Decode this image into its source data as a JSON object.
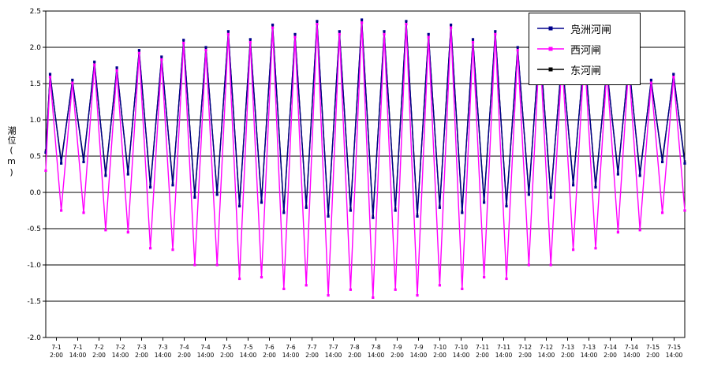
{
  "chart_data": {
    "type": "line",
    "title": "",
    "xlabel": "",
    "ylabel": "潮位(m)",
    "ylim": [
      -2.0,
      2.5
    ],
    "ytick_step": 0.5,
    "yticks": [
      "2.5",
      "2.0",
      "1.5",
      "1.0",
      "0.5",
      "0.0",
      "-0.5",
      "-1.0",
      "-1.5",
      "-2.0"
    ],
    "grid": true,
    "legend_position": "top-right",
    "xticks": [
      {
        "date": "7-1",
        "time": "2:00"
      },
      {
        "date": "7-1",
        "time": "14:00"
      },
      {
        "date": "7-2",
        "time": "2:00"
      },
      {
        "date": "7-2",
        "time": "14:00"
      },
      {
        "date": "7-3",
        "time": "2:00"
      },
      {
        "date": "7-3",
        "time": "14:00"
      },
      {
        "date": "7-4",
        "time": "2:00"
      },
      {
        "date": "7-4",
        "time": "14:00"
      },
      {
        "date": "7-5",
        "time": "2:00"
      },
      {
        "date": "7-5",
        "time": "14:00"
      },
      {
        "date": "7-6",
        "time": "2:00"
      },
      {
        "date": "7-6",
        "time": "14:00"
      },
      {
        "date": "7-7",
        "time": "2:00"
      },
      {
        "date": "7-7",
        "time": "14:00"
      },
      {
        "date": "7-8",
        "time": "2:00"
      },
      {
        "date": "7-8",
        "time": "14:00"
      },
      {
        "date": "7-9",
        "time": "2:00"
      },
      {
        "date": "7-9",
        "time": "14:00"
      },
      {
        "date": "7-10",
        "time": "2:00"
      },
      {
        "date": "7-10",
        "time": "14:00"
      },
      {
        "date": "7-11",
        "time": "2:00"
      },
      {
        "date": "7-11",
        "time": "14:00"
      },
      {
        "date": "7-12",
        "time": "2:00"
      },
      {
        "date": "7-12",
        "time": "14:00"
      },
      {
        "date": "7-13",
        "time": "2:00"
      },
      {
        "date": "7-13",
        "time": "14:00"
      },
      {
        "date": "7-14",
        "time": "2:00"
      },
      {
        "date": "7-14",
        "time": "14:00"
      },
      {
        "date": "7-15",
        "time": "2:00"
      },
      {
        "date": "7-15",
        "time": "14:00"
      }
    ],
    "series": [
      {
        "name": "凫洲河闸",
        "color": "#00008B",
        "marker": "square",
        "points": [
          [
            0.0,
            0.55
          ],
          [
            0.1,
            1.63
          ],
          [
            0.36,
            0.4
          ],
          [
            0.62,
            1.55
          ],
          [
            0.88,
            0.42
          ],
          [
            1.13,
            1.8
          ],
          [
            1.39,
            0.23
          ],
          [
            1.65,
            1.72
          ],
          [
            1.91,
            0.25
          ],
          [
            2.17,
            1.96
          ],
          [
            2.43,
            0.07
          ],
          [
            2.69,
            1.87
          ],
          [
            2.95,
            0.1
          ],
          [
            3.2,
            2.1
          ],
          [
            3.46,
            -0.07
          ],
          [
            3.72,
            2.0
          ],
          [
            3.98,
            -0.03
          ],
          [
            4.24,
            2.22
          ],
          [
            4.5,
            -0.19
          ],
          [
            4.75,
            2.11
          ],
          [
            5.01,
            -0.14
          ],
          [
            5.27,
            2.31
          ],
          [
            5.53,
            -0.28
          ],
          [
            5.79,
            2.18
          ],
          [
            6.05,
            -0.21
          ],
          [
            6.3,
            2.36
          ],
          [
            6.56,
            -0.33
          ],
          [
            6.82,
            2.22
          ],
          [
            7.08,
            -0.25
          ],
          [
            7.34,
            2.38
          ],
          [
            7.6,
            -0.35
          ],
          [
            7.86,
            2.22
          ],
          [
            8.12,
            -0.25
          ],
          [
            8.37,
            2.36
          ],
          [
            8.63,
            -0.33
          ],
          [
            8.89,
            2.18
          ],
          [
            9.15,
            -0.21
          ],
          [
            9.41,
            2.31
          ],
          [
            9.67,
            -0.28
          ],
          [
            9.92,
            2.11
          ],
          [
            10.18,
            -0.14
          ],
          [
            10.44,
            2.22
          ],
          [
            10.7,
            -0.19
          ],
          [
            10.96,
            2.0
          ],
          [
            11.22,
            -0.03
          ],
          [
            11.47,
            2.1
          ],
          [
            11.73,
            -0.07
          ],
          [
            11.99,
            1.87
          ],
          [
            12.25,
            0.1
          ],
          [
            12.51,
            1.96
          ],
          [
            12.77,
            0.07
          ],
          [
            13.03,
            1.72
          ],
          [
            13.29,
            0.25
          ],
          [
            13.54,
            1.8
          ],
          [
            13.8,
            0.23
          ],
          [
            14.06,
            1.55
          ],
          [
            14.32,
            0.42
          ],
          [
            14.58,
            1.63
          ],
          [
            14.84,
            0.4
          ]
        ]
      },
      {
        "name": "西河闸",
        "color": "#FF00FF",
        "marker": "square",
        "points": [
          [
            0.0,
            0.3
          ],
          [
            0.1,
            1.59
          ],
          [
            0.36,
            -0.25
          ],
          [
            0.62,
            1.51
          ],
          [
            0.88,
            -0.28
          ],
          [
            1.13,
            1.76
          ],
          [
            1.39,
            -0.52
          ],
          [
            1.65,
            1.68
          ],
          [
            1.91,
            -0.55
          ],
          [
            2.17,
            1.92
          ],
          [
            2.43,
            -0.77
          ],
          [
            2.69,
            1.83
          ],
          [
            2.95,
            -0.79
          ],
          [
            3.2,
            2.06
          ],
          [
            3.46,
            -1.0
          ],
          [
            3.72,
            1.96
          ],
          [
            3.98,
            -1.0
          ],
          [
            4.24,
            2.18
          ],
          [
            4.5,
            -1.19
          ],
          [
            4.75,
            2.07
          ],
          [
            5.01,
            -1.17
          ],
          [
            5.27,
            2.27
          ],
          [
            5.53,
            -1.33
          ],
          [
            5.79,
            2.14
          ],
          [
            6.05,
            -1.28
          ],
          [
            6.3,
            2.32
          ],
          [
            6.56,
            -1.42
          ],
          [
            6.82,
            2.18
          ],
          [
            7.08,
            -1.34
          ],
          [
            7.34,
            2.34
          ],
          [
            7.6,
            -1.45
          ],
          [
            7.86,
            2.18
          ],
          [
            8.12,
            -1.34
          ],
          [
            8.37,
            2.32
          ],
          [
            8.63,
            -1.42
          ],
          [
            8.89,
            2.14
          ],
          [
            9.15,
            -1.28
          ],
          [
            9.41,
            2.27
          ],
          [
            9.67,
            -1.33
          ],
          [
            9.92,
            2.07
          ],
          [
            10.18,
            -1.17
          ],
          [
            10.44,
            2.18
          ],
          [
            10.7,
            -1.19
          ],
          [
            10.96,
            1.96
          ],
          [
            11.22,
            -1.0
          ],
          [
            11.47,
            2.06
          ],
          [
            11.73,
            -1.0
          ],
          [
            11.99,
            1.83
          ],
          [
            12.25,
            -0.79
          ],
          [
            12.51,
            1.92
          ],
          [
            12.77,
            -0.77
          ],
          [
            13.03,
            1.68
          ],
          [
            13.29,
            -0.55
          ],
          [
            13.54,
            1.76
          ],
          [
            13.8,
            -0.52
          ],
          [
            14.06,
            1.51
          ],
          [
            14.32,
            -0.28
          ],
          [
            14.58,
            1.59
          ],
          [
            14.84,
            -0.25
          ]
        ]
      },
      {
        "name": "东河闸",
        "color": "#000000",
        "marker": "square",
        "points": [
          [
            0.0,
            0.58
          ],
          [
            0.1,
            1.61
          ],
          [
            0.36,
            0.43
          ],
          [
            0.62,
            1.53
          ],
          [
            0.88,
            0.45
          ],
          [
            1.13,
            1.78
          ],
          [
            1.39,
            0.26
          ],
          [
            1.65,
            1.7
          ],
          [
            1.91,
            0.28
          ],
          [
            2.17,
            1.94
          ],
          [
            2.43,
            0.1
          ],
          [
            2.69,
            1.85
          ],
          [
            2.95,
            0.13
          ],
          [
            3.2,
            2.08
          ],
          [
            3.46,
            -0.04
          ],
          [
            3.72,
            1.98
          ],
          [
            3.98,
            0.0
          ],
          [
            4.24,
            2.2
          ],
          [
            4.5,
            -0.16
          ],
          [
            4.75,
            2.09
          ],
          [
            5.01,
            -0.11
          ],
          [
            5.27,
            2.29
          ],
          [
            5.53,
            -0.25
          ],
          [
            5.79,
            2.16
          ],
          [
            6.05,
            -0.18
          ],
          [
            6.3,
            2.34
          ],
          [
            6.56,
            -0.3
          ],
          [
            6.82,
            2.2
          ],
          [
            7.08,
            -0.22
          ],
          [
            7.34,
            2.36
          ],
          [
            7.6,
            -0.32
          ],
          [
            7.86,
            2.2
          ],
          [
            8.12,
            -0.22
          ],
          [
            8.37,
            2.34
          ],
          [
            8.63,
            -0.3
          ],
          [
            8.89,
            2.16
          ],
          [
            9.15,
            -0.18
          ],
          [
            9.41,
            2.29
          ],
          [
            9.67,
            -0.25
          ],
          [
            9.92,
            2.09
          ],
          [
            10.18,
            -0.11
          ],
          [
            10.44,
            2.2
          ],
          [
            10.7,
            -0.16
          ],
          [
            10.96,
            1.98
          ],
          [
            11.22,
            0.0
          ],
          [
            11.47,
            2.08
          ],
          [
            11.73,
            -0.04
          ],
          [
            11.99,
            1.85
          ],
          [
            12.25,
            0.13
          ],
          [
            12.51,
            1.94
          ],
          [
            12.77,
            0.1
          ],
          [
            13.03,
            1.7
          ],
          [
            13.29,
            0.28
          ],
          [
            13.54,
            1.78
          ],
          [
            13.8,
            0.26
          ],
          [
            14.06,
            1.53
          ],
          [
            14.32,
            0.45
          ],
          [
            14.58,
            1.61
          ],
          [
            14.84,
            0.43
          ]
        ]
      }
    ]
  }
}
